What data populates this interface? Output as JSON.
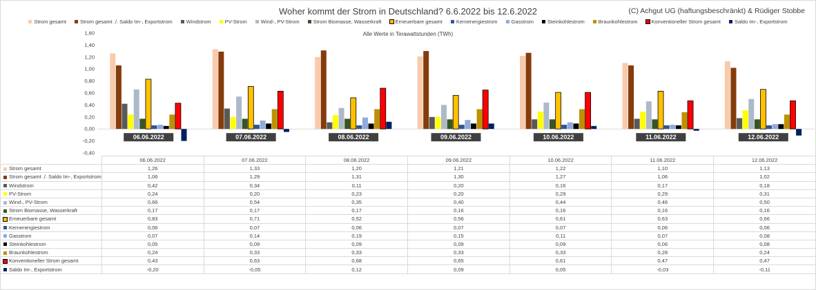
{
  "title": "Woher kommt der Strom in Deutschland? 6.6.2022 bis 12.6.2022",
  "copyright": "(C) Achgut UG (haftungsbeschränkt) & Rüdiger Stobbe",
  "subtitle": "Alle Werte in Terawattstunden (TWh)",
  "chart_data": {
    "type": "bar",
    "categories": [
      "06.06.2022",
      "07.06.2022",
      "08.06.2022",
      "09.06.2022",
      "10.06.2022",
      "11.06.2022",
      "12.06.2022"
    ],
    "ylim": [
      -0.4,
      1.6
    ],
    "yticks": [
      "1,60",
      "1,40",
      "1,20",
      "1,00",
      "0,80",
      "0,60",
      "0,40",
      "0,20",
      "0,00",
      "-0,20",
      "-0,40"
    ],
    "ytick_values": [
      1.6,
      1.4,
      1.2,
      1.0,
      0.8,
      0.6,
      0.4,
      0.2,
      0.0,
      -0.2,
      -0.4
    ],
    "grid": false,
    "legend_position": "top",
    "series": [
      {
        "name": "Strom gesamt",
        "color": "#f8cbad",
        "values": [
          1.26,
          1.33,
          1.2,
          1.21,
          1.22,
          1.1,
          1.13
        ],
        "labels": [
          "1,26",
          "1,33",
          "1,20",
          "1,21",
          "1,22",
          "1,10",
          "1,13"
        ]
      },
      {
        "name": "Strom gesamt ./. Saldo Im-, Exportstrom",
        "color": "#843c0c",
        "values": [
          1.06,
          1.29,
          1.31,
          1.3,
          1.27,
          1.06,
          1.02
        ],
        "labels": [
          "1,06",
          "1,29",
          "1,31",
          "1,30",
          "1,27",
          "1,06",
          "1,02"
        ]
      },
      {
        "name": "Windstrom",
        "color": "#595959",
        "values": [
          0.42,
          0.34,
          0.11,
          0.2,
          0.16,
          0.17,
          0.18
        ],
        "labels": [
          "0,42",
          "0,34",
          "0,11",
          "0,20",
          "0,16",
          "0,17",
          "0,18"
        ]
      },
      {
        "name": "PV-Strom",
        "color": "#ffff00",
        "values": [
          0.24,
          0.2,
          0.23,
          0.2,
          0.29,
          0.29,
          0.31
        ],
        "labels": [
          "0,24",
          "0,20",
          "0,23",
          "0,20",
          "0,29",
          "0,29",
          "0,31"
        ]
      },
      {
        "name": "Wind-, PV-Strom",
        "color": "#adb9ca",
        "values": [
          0.66,
          0.54,
          0.35,
          0.4,
          0.44,
          0.46,
          0.5
        ],
        "labels": [
          "0,66",
          "0,54",
          "0,35",
          "0,40",
          "0,44",
          "0,46",
          "0,50"
        ]
      },
      {
        "name": "Strom Biomasse, Wasserkraft",
        "color": "#375623",
        "values": [
          0.17,
          0.17,
          0.17,
          0.16,
          0.16,
          0.16,
          0.16
        ],
        "labels": [
          "0,17",
          "0,17",
          "0,17",
          "0,16",
          "0,16",
          "0,16",
          "0,16"
        ]
      },
      {
        "name": "Erneuerbare gesamt",
        "color": "#ffc000",
        "border": "#000000",
        "values": [
          0.83,
          0.71,
          0.52,
          0.56,
          0.61,
          0.63,
          0.66
        ],
        "labels": [
          "0,83",
          "0,71",
          "0,52",
          "0,56",
          "0,61",
          "0,63",
          "0,66"
        ]
      },
      {
        "name": "Kernenergiestrom",
        "color": "#2f5597",
        "values": [
          0.06,
          0.07,
          0.06,
          0.07,
          0.07,
          0.06,
          0.06
        ],
        "labels": [
          "0,06",
          "0,07",
          "0,06",
          "0,07",
          "0,07",
          "0,06",
          "0,06"
        ]
      },
      {
        "name": "Gasstrom",
        "color": "#8faadc",
        "values": [
          0.07,
          0.14,
          0.19,
          0.15,
          0.11,
          0.07,
          0.08
        ],
        "labels": [
          "0,07",
          "0,14",
          "0,19",
          "0,15",
          "0,11",
          "0,07",
          "0,08"
        ]
      },
      {
        "name": "Steinkohlestrom",
        "color": "#000000",
        "values": [
          0.05,
          0.09,
          0.09,
          0.09,
          0.09,
          0.06,
          0.08
        ],
        "labels": [
          "0,05",
          "0,09",
          "0,09",
          "0,09",
          "0,09",
          "0,06",
          "0,08"
        ]
      },
      {
        "name": "Braunkohlestrom",
        "color": "#bf9000",
        "values": [
          0.24,
          0.33,
          0.33,
          0.33,
          0.33,
          0.28,
          0.24
        ],
        "labels": [
          "0,24",
          "0,33",
          "0,33",
          "0,33",
          "0,33",
          "0,28",
          "0,24"
        ]
      },
      {
        "name": "Konventioneller Strom gesamt",
        "color": "#ff0000",
        "border": "#000000",
        "values": [
          0.43,
          0.63,
          0.68,
          0.65,
          0.61,
          0.47,
          0.47
        ],
        "labels": [
          "0,43",
          "0,63",
          "0,68",
          "0,65",
          "0,61",
          "0,47",
          "0,47"
        ]
      },
      {
        "name": "Saldo Im-, Exportstrom",
        "color": "#002060",
        "values": [
          -0.2,
          -0.05,
          0.12,
          0.09,
          0.05,
          -0.03,
          -0.11
        ],
        "labels": [
          "-0,20",
          "-0,05",
          "0,12",
          "0,09",
          "0,05",
          "-0,03",
          "-0,11"
        ]
      }
    ]
  }
}
